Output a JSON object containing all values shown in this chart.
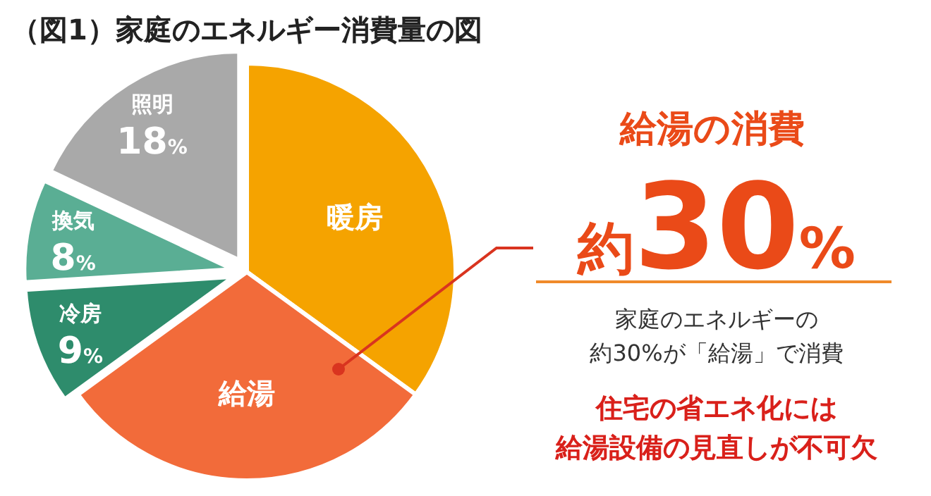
{
  "chart_data": {
    "type": "pie",
    "title": "（図1）家庭のエネルギー消費量の図",
    "categories": [
      "暖房",
      "給湯",
      "冷房",
      "換気",
      "照明"
    ],
    "values": [
      35,
      30,
      9,
      8,
      18
    ],
    "value_labels": [
      null,
      null,
      "9%",
      "8%",
      "18%"
    ],
    "colors": [
      "#f5a300",
      "#f26b3a",
      "#2e8c6c",
      "#5aae94",
      "#a9a9a9"
    ],
    "annotations": [
      "給湯の消費",
      "約30%",
      "家庭のエネルギーの",
      "約30%が「給湯」で消費",
      "住宅の省エネ化には",
      "給湯設備の見直しが不可欠"
    ],
    "legend": false
  }
}
